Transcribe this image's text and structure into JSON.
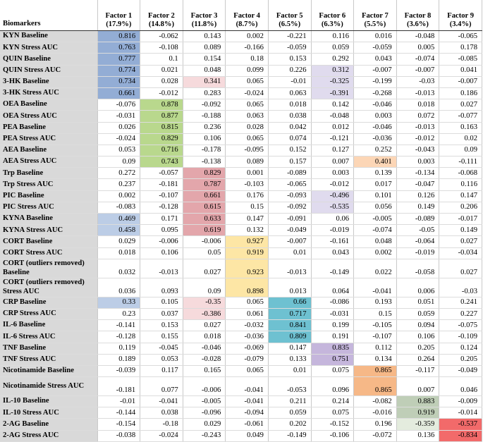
{
  "colors": {
    "label_bg": "#d9d9d9",
    "blue": "#93add5",
    "light_blue": "#bccde6",
    "green": "#b9d88d",
    "red": "#e3a6ab",
    "light_red": "#f6dadc",
    "yellow": "#fde6a5",
    "cyan": "#6ec1d1",
    "lavender": "#e0dbee",
    "purple": "#c5b6dc",
    "orange": "#f6b887",
    "light_orange": "#fcd6b6",
    "sage": "#bfceb7",
    "light_sage": "#e4ecde",
    "bright_red": "#f26a6a"
  },
  "table": {
    "header": {
      "biomarkers": "Biomarkers",
      "factors": [
        {
          "name": "Factor 1",
          "pct": "(17.9%)"
        },
        {
          "name": "Factor 2",
          "pct": "(14.8%)"
        },
        {
          "name": "Factor 3",
          "pct": "(11.8%)"
        },
        {
          "name": "Factor 4",
          "pct": "(8.7%)"
        },
        {
          "name": "Factor 5",
          "pct": "(6.5%)"
        },
        {
          "name": "Factor 6",
          "pct": "(6.3%)"
        },
        {
          "name": "Factor 7",
          "pct": "(5.5%)"
        },
        {
          "name": "Factor 8",
          "pct": "(3.6%)"
        },
        {
          "name": "Factor 9",
          "pct": "(3.4%)"
        }
      ]
    },
    "rows": [
      {
        "label": "KYN Baseline",
        "values": [
          "0.816",
          "-0.062",
          "0.143",
          "0.002",
          "-0.221",
          "0.116",
          "0.016",
          "-0.048",
          "-0.065"
        ],
        "hl": {
          "0": "blue"
        }
      },
      {
        "label": "KYN Stress AUC",
        "values": [
          "0.763",
          "-0.108",
          "0.089",
          "-0.166",
          "-0.059",
          "0.059",
          "-0.059",
          "0.005",
          "0.178"
        ],
        "hl": {
          "0": "blue"
        }
      },
      {
        "label": "QUIN Baseline",
        "values": [
          "0.777",
          "0.1",
          "0.154",
          "0.18",
          "0.153",
          "0.292",
          "0.043",
          "-0.074",
          "-0.085"
        ],
        "hl": {
          "0": "blue"
        }
      },
      {
        "label": "QUIN Stress AUC",
        "values": [
          "0.774",
          "0.021",
          "0.048",
          "0.099",
          "0.226",
          "0.312",
          "-0.007",
          "-0.007",
          "0.041"
        ],
        "hl": {
          "0": "blue",
          "5": "lavender"
        }
      },
      {
        "label": "3-HK Baseline",
        "values": [
          "0.734",
          "0.028",
          "0.341",
          "0.065",
          "-0.01",
          "-0.325",
          "-0.199",
          "-0.03",
          "-0.007"
        ],
        "hl": {
          "0": "blue",
          "2": "light_red",
          "5": "lavender"
        }
      },
      {
        "label": "3-HK Stress AUC",
        "values": [
          "0.661",
          "-0.012",
          "0.283",
          "-0.024",
          "0.063",
          "-0.391",
          "-0.268",
          "-0.013",
          "0.186"
        ],
        "hl": {
          "0": "blue",
          "5": "lavender"
        }
      },
      {
        "label": "OEA Baseline",
        "values": [
          "-0.076",
          "0.878",
          "-0.092",
          "0.065",
          "0.018",
          "0.142",
          "-0.046",
          "0.018",
          "0.027"
        ],
        "hl": {
          "1": "green"
        },
        "sep": true
      },
      {
        "label": "OEA Stress AUC",
        "values": [
          "-0.031",
          "0.877",
          "-0.188",
          "0.063",
          "0.038",
          "-0.048",
          "0.003",
          "0.072",
          "-0.077"
        ],
        "hl": {
          "1": "green"
        }
      },
      {
        "label": "PEA Baseline",
        "values": [
          "0.026",
          "0.815",
          "0.236",
          "0.028",
          "0.042",
          "0.012",
          "-0.046",
          "-0.013",
          "0.163"
        ],
        "hl": {
          "1": "green"
        }
      },
      {
        "label": "PEA Stress AUC",
        "values": [
          "-0.024",
          "0.829",
          "0.106",
          "0.065",
          "0.074",
          "-0.121",
          "-0.036",
          "-0.012",
          "0.02"
        ],
        "hl": {
          "1": "green"
        }
      },
      {
        "label": "AEA Baseline",
        "values": [
          "0.053",
          "0.716",
          "-0.178",
          "-0.095",
          "0.152",
          "0.127",
          "0.252",
          "-0.043",
          "0.09"
        ],
        "hl": {
          "1": "green"
        }
      },
      {
        "label": "AEA Stress AUC",
        "values": [
          "0.09",
          "0.743",
          "-0.138",
          "0.089",
          "0.157",
          "0.007",
          "0.401",
          "0.003",
          "-0.111"
        ],
        "hl": {
          "1": "green",
          "6": "light_orange"
        }
      },
      {
        "label": "Trp Baseline",
        "values": [
          "0.272",
          "-0.057",
          "0.829",
          "0.001",
          "-0.089",
          "0.003",
          "0.139",
          "-0.134",
          "-0.068"
        ],
        "hl": {
          "2": "red"
        },
        "sep": true
      },
      {
        "label": "Trp Stress AUC",
        "values": [
          "0.237",
          "-0.181",
          "0.787",
          "-0.103",
          "-0.065",
          "-0.012",
          "0.017",
          "-0.047",
          "0.116"
        ],
        "hl": {
          "2": "red"
        }
      },
      {
        "label": "PIC Baseline",
        "values": [
          "0.002",
          "-0.107",
          "0.661",
          "0.176",
          "-0.093",
          "-0.496",
          "0.101",
          "0.126",
          "0.147"
        ],
        "hl": {
          "2": "red",
          "5": "lavender"
        }
      },
      {
        "label": "PIC Stress AUC",
        "values": [
          "-0.083",
          "-0.128",
          "0.615",
          "0.15",
          "-0.092",
          "-0.535",
          "0.056",
          "0.149",
          "0.206"
        ],
        "hl": {
          "2": "red",
          "5": "lavender"
        }
      },
      {
        "label": "KYNA Baseline",
        "values": [
          "0.469",
          "0.171",
          "0.633",
          "0.147",
          "-0.091",
          "0.06",
          "-0.005",
          "-0.089",
          "-0.017"
        ],
        "hl": {
          "0": "light_blue",
          "2": "red"
        }
      },
      {
        "label": "KYNA Stress AUC",
        "values": [
          "0.458",
          "0.095",
          "0.619",
          "0.132",
          "-0.049",
          "-0.019",
          "-0.074",
          "-0.05",
          "0.149"
        ],
        "hl": {
          "0": "light_blue",
          "2": "red"
        }
      },
      {
        "label": "CORT Baseline",
        "values": [
          "0.029",
          "-0.006",
          "-0.006",
          "0.927",
          "-0.007",
          "-0.161",
          "0.048",
          "-0.064",
          "0.027"
        ],
        "hl": {
          "3": "yellow"
        },
        "sep": true
      },
      {
        "label": "CORT Stress AUC",
        "values": [
          "0.018",
          "0.106",
          "0.05",
          "0.919",
          "0.01",
          "0.043",
          "0.002",
          "-0.019",
          "-0.034"
        ],
        "hl": {
          "3": "yellow"
        }
      },
      {
        "label": "CORT (outliers removed) Baseline",
        "values": [
          "0.032",
          "-0.013",
          "0.027",
          "0.923",
          "-0.013",
          "-0.149",
          "0.022",
          "-0.058",
          "0.027"
        ],
        "hl": {
          "3": "yellow"
        },
        "tall": true
      },
      {
        "label": "CORT (outliers removed) Stress AUC",
        "values": [
          "0.036",
          "0.093",
          "0.09",
          "0.898",
          "0.013",
          "0.064",
          "-0.041",
          "0.006",
          "-0.03"
        ],
        "hl": {
          "3": "yellow"
        },
        "tall": true
      },
      {
        "label": "CRP Baseline",
        "values": [
          "0.33",
          "0.105",
          "-0.35",
          "0.065",
          "0.66",
          "-0.086",
          "0.193",
          "0.051",
          "0.241"
        ],
        "hl": {
          "0": "light_blue",
          "2": "light_red",
          "4": "cyan"
        },
        "sep": true
      },
      {
        "label": "CRP Stress AUC",
        "values": [
          "0.23",
          "0.037",
          "-0.386",
          "0.061",
          "0.717",
          "-0.031",
          "0.15",
          "0.059",
          "0.227"
        ],
        "hl": {
          "2": "light_red",
          "4": "cyan"
        }
      },
      {
        "label": "IL-6 Baseline",
        "values": [
          "-0.141",
          "0.153",
          "0.027",
          "-0.032",
          "0.841",
          "0.199",
          "-0.105",
          "0.094",
          "-0.075"
        ],
        "hl": {
          "4": "cyan"
        }
      },
      {
        "label": "IL-6 Stress AUC",
        "values": [
          "-0.128",
          "0.155",
          "0.018",
          "-0.036",
          "0.809",
          "0.191",
          "-0.107",
          "0.106",
          "-0.109"
        ],
        "hl": {
          "4": "cyan"
        }
      },
      {
        "label": "TNF Baseline",
        "values": [
          "0.119",
          "-0.045",
          "-0.046",
          "-0.069",
          "0.147",
          "0.835",
          "0.112",
          "0.205",
          "0.124"
        ],
        "hl": {
          "5": "purple"
        },
        "sep": true
      },
      {
        "label": "TNF Stress AUC",
        "values": [
          "0.189",
          "0.053",
          "-0.028",
          "-0.079",
          "0.133",
          "0.751",
          "0.134",
          "0.264",
          "0.205"
        ],
        "hl": {
          "5": "purple"
        }
      },
      {
        "label": "Nicotinamide Baseline",
        "values": [
          "-0.039",
          "0.117",
          "0.165",
          "0.065",
          "0.01",
          "0.075",
          "0.865",
          "-0.117",
          "-0.049"
        ],
        "hl": {
          "6": "orange"
        },
        "sep": true
      },
      {
        "label": "Nicotinamide Stress AUC",
        "values": [
          "-0.181",
          "0.077",
          "-0.006",
          "-0.041",
          "-0.053",
          "0.096",
          "0.865",
          "0.007",
          "0.046"
        ],
        "hl": {
          "6": "orange"
        },
        "tall": true
      },
      {
        "label": "IL-10 Baseline",
        "values": [
          "-0.01",
          "-0.041",
          "-0.005",
          "-0.041",
          "0.211",
          "0.214",
          "-0.082",
          "0.883",
          "-0.009"
        ],
        "hl": {
          "7": "sage"
        },
        "sep": true
      },
      {
        "label": "IL-10 Stress AUC",
        "values": [
          "-0.144",
          "0.038",
          "-0.096",
          "-0.094",
          "0.059",
          "0.075",
          "-0.016",
          "0.919",
          "-0.014"
        ],
        "hl": {
          "7": "sage"
        }
      },
      {
        "label": "2-AG Baseline",
        "values": [
          "-0.154",
          "-0.18",
          "0.029",
          "-0.061",
          "0.202",
          "-0.152",
          "0.196",
          "-0.359",
          "-0.537"
        ],
        "hl": {
          "7": "light_sage",
          "8": "bright_red"
        },
        "sep": true
      },
      {
        "label": "2-AG Stress AUC",
        "values": [
          "-0.038",
          "-0.024",
          "-0.243",
          "0.049",
          "-0.149",
          "-0.106",
          "-0.072",
          "0.136",
          "-0.834"
        ],
        "hl": {
          "8": "bright_red"
        }
      }
    ]
  }
}
